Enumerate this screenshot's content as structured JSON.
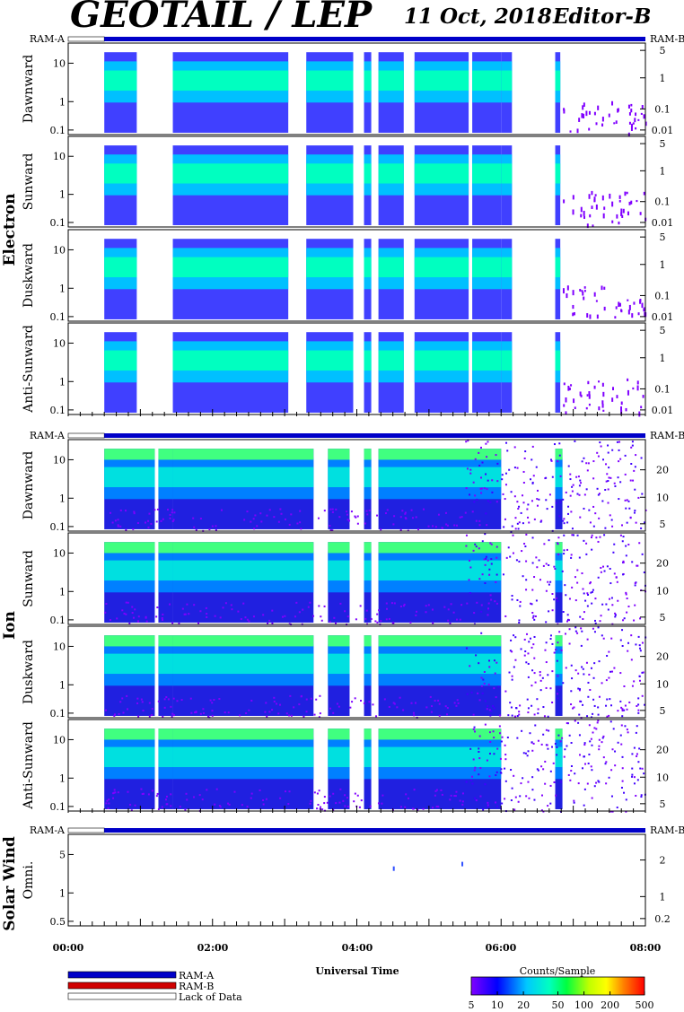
{
  "header": {
    "title": "GEOTAIL / LEP",
    "date": "11 Oct, 2018",
    "editor": "Editor-B"
  },
  "ram_labels": {
    "left": "RAM-A",
    "right": "RAM-B"
  },
  "chart_data": {
    "type": "heatmap",
    "x_axis": {
      "label": "Universal Time",
      "range": [
        "00:00",
        "08:00"
      ],
      "tick_labels": [
        "00:00",
        "02:00",
        "04:00",
        "06:00",
        "08:00"
      ]
    },
    "groups": [
      {
        "name": "Electron",
        "panels": [
          {
            "name": "Dawnward",
            "ytick_labels": [
              "10",
              "1",
              "0.1"
            ],
            "right_tick_labels": [
              "5",
              "1",
              "0.1",
              "0.01"
            ]
          },
          {
            "name": "Sunward",
            "ytick_labels": [
              "10",
              "1",
              "0.1"
            ],
            "right_tick_labels": [
              "5",
              "1",
              "0.1",
              "0.01"
            ]
          },
          {
            "name": "Duskward",
            "ytick_labels": [
              "10",
              "1",
              "0.1"
            ],
            "right_tick_labels": [
              "5",
              "1",
              "0.1",
              "0.01"
            ]
          },
          {
            "name": "Anti-Sunward",
            "ytick_labels": [
              "10",
              "1",
              "0.1"
            ],
            "right_tick_labels": [
              "5",
              "1",
              "0.1",
              "0.01"
            ]
          }
        ],
        "data_segments_hours": [
          [
            0.5,
            0.95
          ],
          [
            1.45,
            3.05
          ],
          [
            3.3,
            3.95
          ],
          [
            4.1,
            4.2
          ],
          [
            4.3,
            4.65
          ],
          [
            4.8,
            5.55
          ],
          [
            5.6,
            6.0
          ],
          [
            6.0,
            6.15
          ],
          [
            6.75,
            6.82
          ],
          [
            6.85,
            8.0
          ]
        ]
      },
      {
        "name": "Ion",
        "panels": [
          {
            "name": "Dawnward",
            "ytick_labels": [
              "10",
              "1",
              "0.1"
            ],
            "right_tick_labels": [
              "20",
              "10",
              "5"
            ]
          },
          {
            "name": "Sunward",
            "ytick_labels": [
              "10",
              "1",
              "0.1"
            ],
            "right_tick_labels": [
              "20",
              "10",
              "5"
            ]
          },
          {
            "name": "Duskward",
            "ytick_labels": [
              "10",
              "1",
              "0.1"
            ],
            "right_tick_labels": [
              "20",
              "10",
              "5"
            ]
          },
          {
            "name": "Anti-Sunward",
            "ytick_labels": [
              "10",
              "1",
              "0.1"
            ],
            "right_tick_labels": [
              "20",
              "10",
              "5"
            ]
          }
        ],
        "data_segments_hours": [
          [
            0.5,
            1.2
          ],
          [
            1.25,
            1.45
          ],
          [
            1.45,
            3.4
          ],
          [
            3.6,
            3.9
          ],
          [
            4.1,
            4.2
          ],
          [
            4.3,
            6.0
          ],
          [
            6.75,
            6.85
          ]
        ]
      },
      {
        "name": "Solar Wind",
        "panels": [
          {
            "name": "Omni.",
            "ytick_labels": [
              "5",
              "1",
              "0.5"
            ],
            "right_tick_labels": [
              "2",
              "1",
              "0.2"
            ]
          }
        ],
        "data_segments_hours": [
          [
            4.5,
            4.52
          ],
          [
            5.45,
            5.47
          ]
        ]
      }
    ],
    "ram_bar": {
      "lack_of_data_hours": [
        0,
        0.5
      ],
      "ram_a_hours": [
        0.5,
        8.0
      ]
    },
    "legend": [
      {
        "label": "RAM-A",
        "color": "#0000c8"
      },
      {
        "label": "RAM-B",
        "color": "#d00000"
      },
      {
        "label": "Lack of Data",
        "color": "#ffffff"
      }
    ],
    "colorbar": {
      "title": "Counts/Sample",
      "tick_labels": [
        "5",
        "10",
        "20",
        "50",
        "100",
        "200",
        "500"
      ],
      "scale": "log",
      "colors": [
        "#8000ff",
        "#0000ff",
        "#00c8ff",
        "#00ff80",
        "#80ff00",
        "#ffff00",
        "#ff8000",
        "#ff0000"
      ]
    }
  }
}
